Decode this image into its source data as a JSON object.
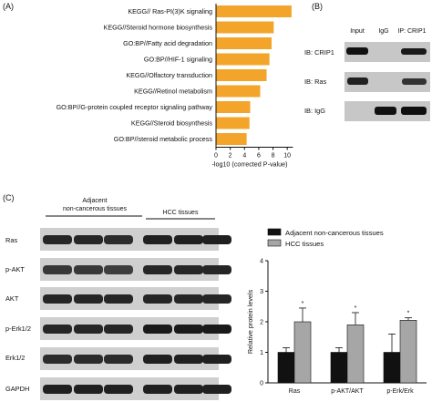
{
  "panels": {
    "a": "(A)",
    "b": "(B)",
    "c": "(C)"
  },
  "chart_a": {
    "type": "bar",
    "orientation": "horizontal",
    "categories": [
      "KEGG// Ras-PI(3)K signaling",
      "KEGG//Steroid hormone biosynthesis",
      "GO:BP//Fatty acid degradation",
      "GO:BP//HIF-1 signaling",
      "KEGG//Olfactory transduction",
      "KEGG//Retinol metabolism",
      "GO:BP//G-protein coupled receptor signaling pathway",
      "KEGG//Steroid biosynthesis",
      "GO:BP//steroid metabolic process"
    ],
    "values": [
      10.6,
      8.1,
      7.8,
      7.5,
      7.1,
      6.2,
      4.8,
      4.7,
      4.3
    ],
    "xlabel": "-log10 (corrected  P-value)",
    "xticks": [
      "0",
      "2",
      "4",
      "6",
      "8",
      "10"
    ],
    "xlim": [
      0,
      11
    ],
    "bar_color": "#F3A42B"
  },
  "blot_b": {
    "columns": [
      "Input",
      "IgG",
      "IP: CRIP1"
    ],
    "rows": [
      "IB: CRIP1",
      "IB: Ras",
      "IB: IgG"
    ]
  },
  "blot_c": {
    "group_labels": [
      "Adjacent\nnon-cancerous tissues",
      "HCC tissues"
    ],
    "group_line1": "Adjacent",
    "group_line2": "non-cancerous tissues",
    "group_hcc": "HCC tissues",
    "rows": [
      "Ras",
      "p-AKT",
      "AKT",
      "p-Erk1/2",
      "Erk1/2",
      "GAPDH"
    ]
  },
  "chart_data": {
    "type": "bar",
    "categories": [
      "Ras",
      "p-AKT/AKT",
      "p-Erk/Erk"
    ],
    "series": [
      {
        "name": "Adjacent non-cancerous tissues",
        "values": [
          1.0,
          1.0,
          1.0
        ],
        "errors": [
          0.15,
          0.15,
          0.6
        ],
        "color": "#111111"
      },
      {
        "name": "HCC tissues",
        "values": [
          2.0,
          1.9,
          2.05
        ],
        "errors": [
          0.45,
          0.4,
          0.08
        ],
        "color": "#A6A6A6"
      }
    ],
    "significance": [
      "*",
      "*",
      "*"
    ],
    "ylabel": "Relative protein levels",
    "yticks": [
      "0",
      "1",
      "2",
      "3",
      "4"
    ],
    "ylim": [
      0,
      4
    ],
    "legend_position": "top"
  }
}
